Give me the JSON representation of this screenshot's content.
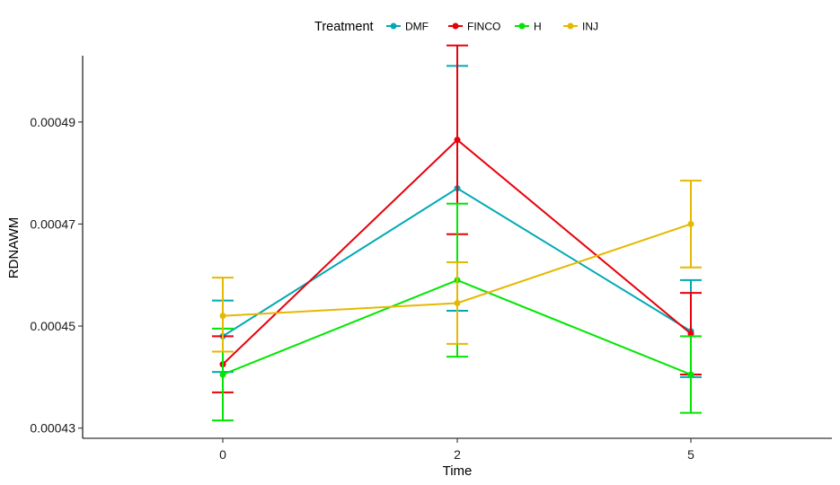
{
  "chart_data": {
    "type": "line",
    "xlabel": "Time",
    "ylabel": "RDNAWM",
    "legend_title": "Treatment",
    "legend_position": "top",
    "grid": false,
    "x_categories": [
      "0",
      "2",
      "5"
    ],
    "ylim": [
      0.000428,
      0.000503
    ],
    "yticks": [
      "0.00043",
      "0.00045",
      "0.00047",
      "0.00049"
    ],
    "series": [
      {
        "name": "DMF",
        "color": "#00A9B5",
        "values": [
          0.000448,
          0.000477,
          0.000449
        ],
        "lower": [
          0.000441,
          0.000453,
          0.00044
        ],
        "upper": [
          0.000455,
          0.000501,
          0.000459
        ]
      },
      {
        "name": "FINCO",
        "color": "#E8000B",
        "values": [
          0.0004425,
          0.0004865,
          0.0004485
        ],
        "lower": [
          0.000437,
          0.000468,
          0.0004405
        ],
        "upper": [
          0.000448,
          0.000505,
          0.0004565
        ]
      },
      {
        "name": "H",
        "color": "#00E600",
        "values": [
          0.0004405,
          0.000459,
          0.0004405
        ],
        "lower": [
          0.0004315,
          0.000444,
          0.000433
        ],
        "upper": [
          0.0004495,
          0.000474,
          0.000448
        ]
      },
      {
        "name": "INJ",
        "color": "#E6B800",
        "values": [
          0.000452,
          0.0004545,
          0.00047
        ],
        "lower": [
          0.000445,
          0.0004465,
          0.0004615
        ],
        "upper": [
          0.0004595,
          0.0004625,
          0.0004785
        ]
      }
    ]
  }
}
